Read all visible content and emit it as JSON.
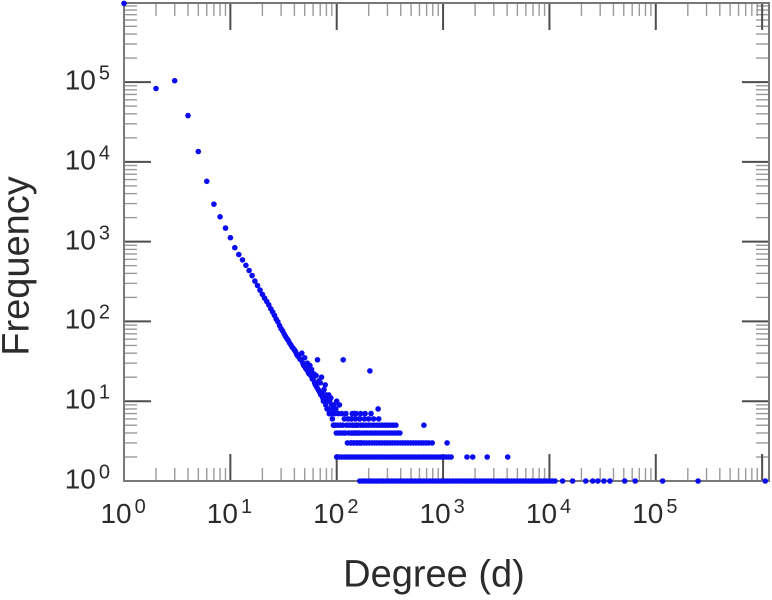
{
  "chart_data": {
    "type": "scatter",
    "title": "",
    "xlabel": "Degree (d)",
    "ylabel": "Frequency",
    "x_scale": "log",
    "y_scale": "log",
    "xlim": [
      1,
      1160000
    ],
    "ylim": [
      1,
      980000
    ],
    "x_tick_exponents": [
      0,
      1,
      2,
      3,
      4,
      5
    ],
    "y_tick_exponents": [
      0,
      1,
      2,
      3,
      4,
      5
    ],
    "tick_base": "10",
    "grid": "off",
    "legend": "none",
    "point_color": "#0c0cf0",
    "border_color": "#787878",
    "major_tick_color": "#4d4d4d",
    "minor_tick_color": "#9a9a9a",
    "text_color": "#2b2b2b",
    "points": [
      [
        1,
        970000
      ],
      [
        2,
        83000
      ],
      [
        3,
        104000
      ],
      [
        4,
        38000
      ],
      [
        5,
        13500
      ],
      [
        6,
        5700
      ],
      [
        7,
        2950
      ],
      [
        8,
        2050
      ],
      [
        9,
        1480
      ],
      [
        10,
        1120
      ],
      [
        11,
        840
      ],
      [
        12,
        690
      ],
      [
        13,
        590
      ],
      [
        14,
        505
      ],
      [
        15,
        435
      ],
      [
        16,
        375
      ],
      [
        17,
        320
      ],
      [
        18,
        282
      ],
      [
        19,
        247
      ],
      [
        20,
        218
      ],
      [
        21,
        196
      ],
      [
        22,
        178
      ],
      [
        23,
        161
      ],
      [
        24,
        144
      ],
      [
        25,
        131
      ],
      [
        26,
        119
      ],
      [
        27,
        107
      ],
      [
        28,
        99
      ],
      [
        29,
        89
      ],
      [
        30,
        81
      ],
      [
        31,
        76
      ],
      [
        32,
        70
      ],
      [
        33,
        65
      ],
      [
        34,
        61
      ],
      [
        35,
        58
      ],
      [
        36,
        54
      ],
      [
        37,
        51
      ],
      [
        38,
        48
      ],
      [
        39,
        46
      ],
      [
        40,
        44
      ],
      [
        41,
        42
      ],
      [
        42,
        39
      ],
      [
        43,
        37
      ],
      [
        44,
        36
      ],
      [
        45,
        34
      ],
      [
        46,
        33
      ],
      [
        47,
        40
      ],
      [
        48,
        30
      ],
      [
        49,
        28
      ],
      [
        50,
        35
      ],
      [
        51,
        26
      ],
      [
        52,
        25
      ],
      [
        53,
        30
      ],
      [
        54,
        23
      ],
      [
        55,
        22
      ],
      [
        56,
        28
      ],
      [
        57,
        21
      ],
      [
        58,
        25
      ],
      [
        59,
        19
      ],
      [
        60,
        19
      ],
      [
        61,
        22
      ],
      [
        62,
        17
      ],
      [
        63,
        16
      ],
      [
        64,
        21
      ],
      [
        65,
        15
      ],
      [
        66,
        33
      ],
      [
        67,
        14
      ],
      [
        68,
        18
      ],
      [
        69,
        13
      ],
      [
        70,
        17
      ],
      [
        71,
        12
      ],
      [
        72,
        20
      ],
      [
        73,
        13
      ],
      [
        74,
        11
      ],
      [
        75,
        10
      ],
      [
        76,
        14
      ],
      [
        77,
        10
      ],
      [
        78,
        16
      ],
      [
        79,
        9
      ],
      [
        80,
        12
      ],
      [
        81,
        8
      ],
      [
        82,
        11
      ],
      [
        83,
        8
      ],
      [
        84,
        12
      ],
      [
        85,
        7
      ],
      [
        86,
        10
      ],
      [
        87,
        7
      ],
      [
        88,
        11
      ],
      [
        89,
        7
      ],
      [
        90,
        9
      ],
      [
        91,
        6
      ],
      [
        92,
        8
      ],
      [
        93,
        5
      ],
      [
        94,
        9
      ],
      [
        95,
        5
      ],
      [
        96,
        7
      ],
      [
        97,
        5
      ],
      [
        98,
        8
      ],
      [
        99,
        4
      ],
      [
        100,
        10
      ],
      [
        102,
        5
      ],
      [
        104,
        7
      ],
      [
        105,
        4
      ],
      [
        106,
        9
      ],
      [
        108,
        5
      ],
      [
        110,
        4
      ],
      [
        112,
        7
      ],
      [
        114,
        5
      ],
      [
        115,
        33
      ],
      [
        116,
        4
      ],
      [
        118,
        6
      ],
      [
        120,
        4
      ],
      [
        122,
        7
      ],
      [
        124,
        5
      ],
      [
        126,
        3
      ],
      [
        128,
        6
      ],
      [
        130,
        4
      ],
      [
        132,
        5
      ],
      [
        135,
        3
      ],
      [
        137,
        6
      ],
      [
        139,
        4
      ],
      [
        141,
        5
      ],
      [
        144,
        3
      ],
      [
        147,
        7
      ],
      [
        150,
        4
      ],
      [
        153,
        5
      ],
      [
        156,
        3
      ],
      [
        160,
        4
      ],
      [
        163,
        6
      ],
      [
        167,
        3
      ],
      [
        205,
        24
      ],
      [
        245,
        8
      ],
      [
        660,
        5
      ],
      [
        140,
        7
      ],
      [
        152,
        7
      ],
      [
        168,
        7
      ],
      [
        185,
        7
      ],
      [
        210,
        7
      ],
      [
        138,
        6
      ],
      [
        150,
        6
      ],
      [
        165,
        6
      ],
      [
        182,
        6
      ],
      [
        200,
        6
      ],
      [
        222,
        6
      ],
      [
        248,
        6
      ],
      [
        140,
        5
      ],
      [
        149,
        5
      ],
      [
        158,
        5
      ],
      [
        168,
        5
      ],
      [
        178,
        5
      ],
      [
        189,
        5
      ],
      [
        200,
        5
      ],
      [
        212,
        5
      ],
      [
        225,
        5
      ],
      [
        239,
        5
      ],
      [
        253,
        5
      ],
      [
        269,
        5
      ],
      [
        285,
        5
      ],
      [
        302,
        5
      ],
      [
        320,
        5
      ],
      [
        340,
        5
      ],
      [
        360,
        5
      ],
      [
        138,
        4
      ],
      [
        146,
        4
      ],
      [
        155,
        4
      ],
      [
        164,
        4
      ],
      [
        174,
        4
      ],
      [
        184,
        4
      ],
      [
        195,
        4
      ],
      [
        207,
        4
      ],
      [
        219,
        4
      ],
      [
        232,
        4
      ],
      [
        246,
        4
      ],
      [
        261,
        4
      ],
      [
        277,
        4
      ],
      [
        293,
        4
      ],
      [
        311,
        4
      ],
      [
        330,
        4
      ],
      [
        350,
        4
      ],
      [
        371,
        4
      ],
      [
        393,
        4
      ],
      [
        137,
        3
      ],
      [
        145,
        3
      ],
      [
        153,
        3
      ],
      [
        162,
        3
      ],
      [
        171,
        3
      ],
      [
        181,
        3
      ],
      [
        191,
        3
      ],
      [
        202,
        3
      ],
      [
        214,
        3
      ],
      [
        226,
        3
      ],
      [
        239,
        3
      ],
      [
        253,
        3
      ],
      [
        267,
        3
      ],
      [
        283,
        3
      ],
      [
        299,
        3
      ],
      [
        316,
        3
      ],
      [
        334,
        3
      ],
      [
        354,
        3
      ],
      [
        374,
        3
      ],
      [
        396,
        3
      ],
      [
        419,
        3
      ],
      [
        443,
        3
      ],
      [
        468,
        3
      ],
      [
        495,
        3
      ],
      [
        524,
        3
      ],
      [
        554,
        3
      ],
      [
        586,
        3
      ],
      [
        620,
        3
      ],
      [
        655,
        3
      ],
      [
        693,
        3
      ],
      [
        733,
        3
      ],
      [
        790,
        3
      ],
      [
        1090,
        3
      ],
      [
        100,
        2
      ],
      [
        106,
        2
      ],
      [
        112,
        2
      ],
      [
        118,
        2
      ],
      [
        125,
        2
      ],
      [
        132,
        2
      ],
      [
        139,
        2
      ],
      [
        147,
        2
      ],
      [
        155,
        2
      ],
      [
        164,
        2
      ],
      [
        173,
        2
      ],
      [
        183,
        2
      ],
      [
        193,
        2
      ],
      [
        204,
        2
      ],
      [
        216,
        2
      ],
      [
        228,
        2
      ],
      [
        241,
        2
      ],
      [
        255,
        2
      ],
      [
        269,
        2
      ],
      [
        284,
        2
      ],
      [
        300,
        2
      ],
      [
        317,
        2
      ],
      [
        335,
        2
      ],
      [
        354,
        2
      ],
      [
        374,
        2
      ],
      [
        395,
        2
      ],
      [
        418,
        2
      ],
      [
        442,
        2
      ],
      [
        467,
        2
      ],
      [
        493,
        2
      ],
      [
        521,
        2
      ],
      [
        551,
        2
      ],
      [
        582,
        2
      ],
      [
        615,
        2
      ],
      [
        650,
        2
      ],
      [
        687,
        2
      ],
      [
        726,
        2
      ],
      [
        767,
        2
      ],
      [
        811,
        2
      ],
      [
        857,
        2
      ],
      [
        906,
        2
      ],
      [
        957,
        2
      ],
      [
        1011,
        2
      ],
      [
        1068,
        2
      ],
      [
        1129,
        2
      ],
      [
        1190,
        2
      ],
      [
        1680,
        2
      ],
      [
        1900,
        2
      ],
      [
        2600,
        2
      ],
      [
        4050,
        2
      ],
      [
        165,
        1
      ],
      [
        176,
        1
      ],
      [
        187,
        1
      ],
      [
        199,
        1
      ],
      [
        212,
        1
      ],
      [
        226,
        1
      ],
      [
        241,
        1
      ],
      [
        257,
        1
      ],
      [
        273,
        1
      ],
      [
        291,
        1
      ],
      [
        310,
        1
      ],
      [
        330,
        1
      ],
      [
        352,
        1
      ],
      [
        375,
        1
      ],
      [
        399,
        1
      ],
      [
        425,
        1
      ],
      [
        453,
        1
      ],
      [
        482,
        1
      ],
      [
        513,
        1
      ],
      [
        547,
        1
      ],
      [
        582,
        1
      ],
      [
        620,
        1
      ],
      [
        660,
        1
      ],
      [
        703,
        1
      ],
      [
        749,
        1
      ],
      [
        798,
        1
      ],
      [
        850,
        1
      ],
      [
        905,
        1
      ],
      [
        964,
        1
      ],
      [
        1027,
        1
      ],
      [
        1094,
        1
      ],
      [
        1165,
        1
      ],
      [
        1241,
        1
      ],
      [
        1322,
        1
      ],
      [
        1408,
        1
      ],
      [
        1500,
        1
      ],
      [
        1597,
        1
      ],
      [
        1701,
        1
      ],
      [
        1812,
        1
      ],
      [
        1930,
        1
      ],
      [
        2056,
        1
      ],
      [
        2190,
        1
      ],
      [
        2332,
        1
      ],
      [
        2484,
        1
      ],
      [
        2646,
        1
      ],
      [
        2818,
        1
      ],
      [
        3001,
        1
      ],
      [
        3196,
        1
      ],
      [
        3404,
        1
      ],
      [
        3626,
        1
      ],
      [
        3862,
        1
      ],
      [
        4113,
        1
      ],
      [
        4381,
        1
      ],
      [
        4666,
        1
      ],
      [
        4969,
        1
      ],
      [
        5292,
        1
      ],
      [
        5637,
        1
      ],
      [
        6003,
        1
      ],
      [
        6394,
        1
      ],
      [
        6810,
        1
      ],
      [
        7253,
        1
      ],
      [
        7725,
        1
      ],
      [
        8227,
        1
      ],
      [
        8762,
        1
      ],
      [
        9332,
        1
      ],
      [
        9939,
        1
      ],
      [
        10585,
        1
      ],
      [
        11273,
        1
      ],
      [
        13300,
        1
      ],
      [
        16500,
        1
      ],
      [
        22000,
        1
      ],
      [
        25500,
        1
      ],
      [
        28500,
        1
      ],
      [
        32500,
        1
      ],
      [
        37000,
        1
      ],
      [
        51000,
        1
      ],
      [
        64000,
        1
      ],
      [
        116000,
        1
      ],
      [
        250000,
        1
      ],
      [
        1070000,
        1
      ]
    ]
  }
}
